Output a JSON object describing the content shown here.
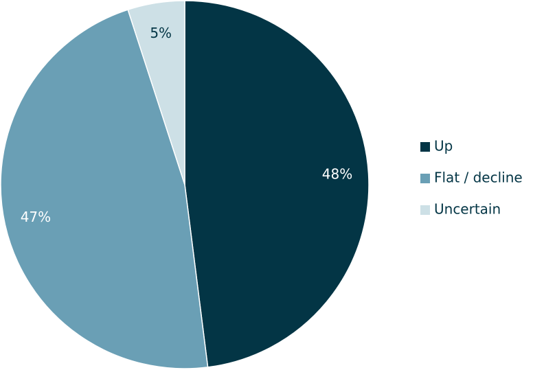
{
  "chart_data": {
    "type": "pie",
    "categories": [
      "Up",
      "Flat / decline",
      "Uncertain"
    ],
    "values": [
      48,
      47,
      5
    ],
    "value_labels": [
      "48%",
      "47%",
      "5%"
    ],
    "colors": [
      "#033545",
      "#6a9fb5",
      "#cde0e6"
    ],
    "legend": "right"
  }
}
